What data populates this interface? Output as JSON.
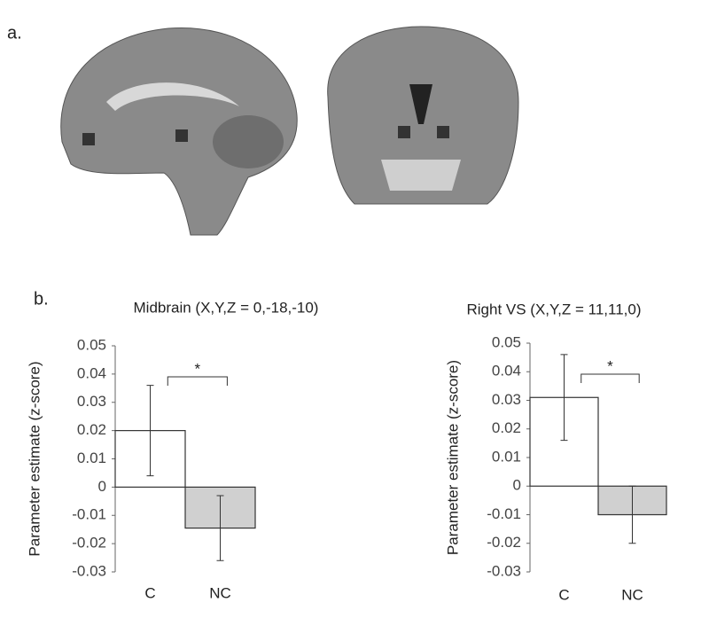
{
  "panels": [
    "a.",
    "b."
  ],
  "chart_data": [
    {
      "type": "bar",
      "title": "Midbrain (X,Y,Z = 0,-18,-10)",
      "y_label": "Parameter estimate (z-score)",
      "categories": [
        "C",
        "NC"
      ],
      "values": [
        0.02,
        -0.0145
      ],
      "errors": [
        0.016,
        0.0115
      ],
      "colors": [
        "#ffffff",
        "#d0d0d0"
      ],
      "ylim": [
        -0.03,
        0.05
      ],
      "yticks": [
        -0.03,
        -0.02,
        -0.01,
        0,
        0.01,
        0.02,
        0.03,
        0.04,
        0.05
      ],
      "annotation": "*"
    },
    {
      "type": "bar",
      "title": "Right VS (X,Y,Z = 11,11,0)",
      "y_label": "Parameter estimate (z-score)",
      "categories": [
        "C",
        "NC"
      ],
      "values": [
        0.031,
        -0.01
      ],
      "errors": [
        0.015,
        0.01
      ],
      "colors": [
        "#ffffff",
        "#d0d0d0"
      ],
      "ylim": [
        -0.03,
        0.05
      ],
      "yticks": [
        -0.03,
        -0.02,
        -0.01,
        0,
        0.01,
        0.02,
        0.03,
        0.04,
        0.05
      ],
      "annotation": "*"
    }
  ]
}
